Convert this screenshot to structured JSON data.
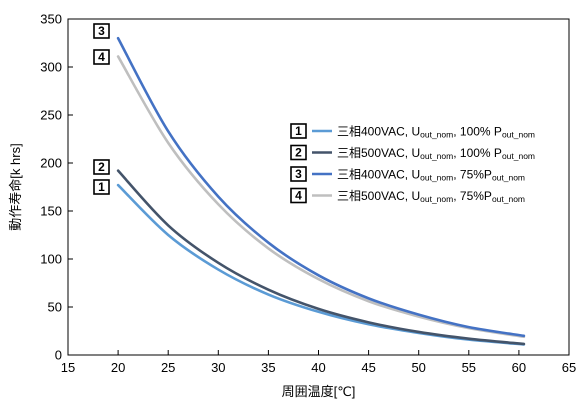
{
  "chart_data": {
    "type": "line",
    "xlabel": "周囲温度[℃]",
    "ylabel": "動作寿命[k hrs]",
    "xlim": [
      15,
      65
    ],
    "ylim": [
      0,
      350
    ],
    "xticks": [
      15,
      20,
      25,
      30,
      35,
      40,
      45,
      50,
      55,
      60,
      65
    ],
    "yticks": [
      0,
      50,
      100,
      150,
      200,
      250,
      300,
      350
    ],
    "grid": false,
    "legend_position": "center-right",
    "series": [
      {
        "badge": "1",
        "name": "三相400VAC, Uout_nom, 100% Pout_nom",
        "label_main": "三相400VAC, U",
        "label_sub1": "out_nom",
        "label_mid": ", 100% P",
        "label_sub2": "out_nom",
        "color": "#5b9bd5",
        "x": [
          20,
          25,
          30,
          35,
          40,
          45,
          50,
          55,
          60.5
        ],
        "y": [
          177,
          125,
          89,
          63,
          45,
          32,
          23,
          16,
          11
        ]
      },
      {
        "badge": "2",
        "name": "三相500VAC, Uout_nom, 100% Pout_nom",
        "label_main": "三相500VAC, U",
        "label_sub1": "out_nom",
        "label_mid": ", 100% P",
        "label_sub2": "out_nom",
        "color": "#44546a",
        "x": [
          20,
          25,
          30,
          35,
          40,
          45,
          50,
          55,
          60.5
        ],
        "y": [
          192,
          135,
          96,
          68,
          48,
          34,
          24,
          17,
          11.5
        ]
      },
      {
        "badge": "3",
        "name": "三相400VAC, Uout_nom, 75%Pout_nom",
        "label_main": "三相400VAC, U",
        "label_sub1": "out_nom",
        "label_mid": ", 75%P",
        "label_sub2": "out_nom",
        "color": "#4472c4",
        "x": [
          20,
          25,
          30,
          35,
          40,
          45,
          50,
          55,
          60.5
        ],
        "y": [
          330,
          233,
          165,
          117,
          83,
          59,
          42,
          29,
          20
        ]
      },
      {
        "badge": "4",
        "name": "三相500VAC, Uout_nom, 75%Pout_nom",
        "label_main": "三相500VAC, U",
        "label_sub1": "out_nom",
        "label_mid": ", 75%P",
        "label_sub2": "out_nom",
        "color": "#bfbfbf",
        "x": [
          20,
          25,
          30,
          35,
          40,
          45,
          50,
          55,
          60.5
        ],
        "y": [
          311,
          221,
          157,
          111,
          79,
          56,
          40,
          28,
          19
        ]
      }
    ],
    "curve_badges": [
      {
        "badge": "3",
        "series": 2
      },
      {
        "badge": "4",
        "series": 3
      },
      {
        "badge": "2",
        "series": 1
      },
      {
        "badge": "1",
        "series": 0
      }
    ]
  }
}
